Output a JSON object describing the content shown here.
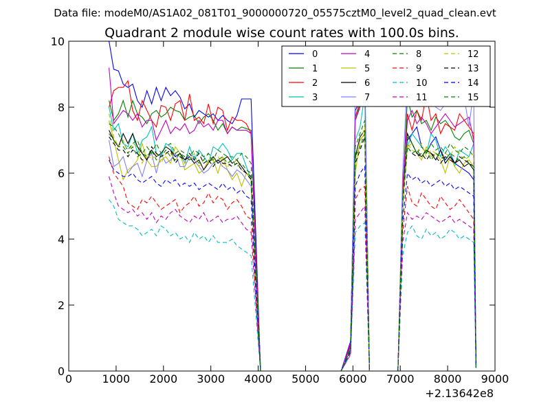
{
  "figure": {
    "suptitle": "Data file: modeM0/AS1A02_081T01_9000000720_05575cztM0_level2_quad_clean.evt",
    "title": "Quadrant 2 module wise count rates with 100.0s bins.",
    "x_offset_label": "+2.13642e8"
  },
  "chart_data": {
    "type": "line",
    "title": "Quadrant 2 module wise count rates with 100.0s bins.",
    "xlim": [
      0,
      9000
    ],
    "ylim": [
      0,
      10
    ],
    "xticks": [
      0,
      1000,
      2000,
      3000,
      4000,
      5000,
      6000,
      7000,
      8000,
      9000
    ],
    "yticks": [
      0,
      2,
      4,
      6,
      8,
      10
    ],
    "x_offset": "+2.13642e8",
    "legend_position": "top-right",
    "grid": false,
    "segments": [
      {
        "x_start": 850,
        "x_end": 3850,
        "step": 100
      },
      {
        "x_start": 5950,
        "x_end": 6250,
        "step": 100
      },
      {
        "x_start": 7050,
        "x_end": 8550,
        "step": 100
      }
    ],
    "x_gaps_zero": [
      [
        4050,
        5750
      ],
      [
        6350,
        6950
      ]
    ],
    "series": [
      {
        "name": "0",
        "color": "#0000ff",
        "dash": "solid",
        "seg1": [
          10.0,
          9.15,
          9.1,
          8.7,
          8.6,
          8.7,
          8.2,
          8.0,
          8.5,
          8.1,
          8.6,
          8.2,
          8.6,
          8.35,
          8.5,
          8.3,
          7.95,
          8.1,
          7.7,
          7.9,
          7.8,
          7.7,
          7.8,
          7.6,
          7.75,
          7.6,
          7.5,
          7.75,
          8.25,
          8.25,
          8.25
        ],
        "seg2": [
          0.9,
          7.9,
          8.2,
          8.6
        ],
        "seg3": [
          5.5,
          7.0,
          7.2,
          7.4,
          6.8,
          6.6,
          6.9,
          7.1,
          6.7,
          6.4,
          6.6,
          6.3,
          6.2,
          6.1,
          6.0,
          5.8
        ]
      },
      {
        "name": "1",
        "color": "#008000",
        "dash": "solid",
        "seg1": [
          8.2,
          7.6,
          7.8,
          8.2,
          7.7,
          8.2,
          7.8,
          7.7,
          7.5,
          7.8,
          7.9,
          7.7,
          7.8,
          8.0,
          7.9,
          7.85,
          7.6,
          7.7,
          7.75,
          7.5,
          7.7,
          7.8,
          7.6,
          7.3,
          7.5,
          7.2,
          7.4,
          7.3,
          7.4,
          7.35,
          7.3
        ],
        "seg2": [
          0.75,
          7.6,
          8.1,
          8.5
        ],
        "seg3": [
          5.3,
          8.3,
          7.7,
          7.9,
          7.5,
          7.6,
          7.3,
          7.7,
          7.5,
          7.6,
          7.4,
          7.1,
          7.0,
          7.2,
          7.3,
          6.9
        ]
      },
      {
        "name": "2",
        "color": "#ff0000",
        "dash": "solid",
        "seg1": [
          8.0,
          8.5,
          8.6,
          8.6,
          8.8,
          7.9,
          7.6,
          8.2,
          7.9,
          7.6,
          7.4,
          8.05,
          8.0,
          7.6,
          8.1,
          8.2,
          7.6,
          8.4,
          7.6,
          7.7,
          7.5,
          8.1,
          7.5,
          8.0,
          7.9,
          7.3,
          7.7,
          7.6,
          7.6,
          7.5,
          7.2
        ],
        "seg2": [
          0.8,
          7.7,
          8.2,
          8.6
        ],
        "seg3": [
          5.4,
          7.8,
          7.3,
          7.9,
          7.6,
          8.4,
          7.6,
          7.8,
          7.2,
          7.5,
          7.4,
          7.3,
          7.8,
          7.6,
          7.4,
          7.2
        ]
      },
      {
        "name": "3",
        "color": "#00bfbf",
        "dash": "solid",
        "seg1": [
          8.0,
          7.3,
          7.5,
          6.9,
          6.8,
          7.2,
          6.6,
          7.0,
          7.1,
          7.4,
          6.6,
          6.5,
          6.9,
          6.8,
          6.5,
          6.6,
          6.3,
          6.8,
          6.4,
          6.7,
          6.5,
          6.3,
          6.8,
          6.7,
          6.9,
          6.7,
          6.4,
          6.6,
          6.6,
          6.2,
          5.8
        ],
        "seg2": [
          0.7,
          7.0,
          7.4,
          8.4
        ],
        "seg3": [
          5.1,
          6.8,
          7.2,
          7.0,
          6.8,
          6.6,
          7.2,
          7.0,
          6.5,
          6.8,
          6.6,
          6.2,
          6.7,
          6.6,
          6.5,
          6.9
        ]
      },
      {
        "name": "4",
        "color": "#bf00bf",
        "dash": "solid",
        "seg1": [
          9.2,
          7.5,
          7.7,
          7.9,
          7.8,
          7.6,
          7.8,
          7.4,
          7.6,
          7.6,
          7.0,
          7.3,
          7.6,
          7.2,
          7.4,
          7.3,
          7.5,
          7.2,
          7.3,
          7.6,
          7.4,
          7.5,
          7.3,
          7.6,
          7.6,
          7.2,
          7.4,
          7.3,
          7.3,
          7.3,
          7.2
        ],
        "seg2": [
          0.85,
          7.6,
          8.0,
          8.9
        ],
        "seg3": [
          5.6,
          7.6,
          7.9,
          7.5,
          7.7,
          7.5,
          7.2,
          7.4,
          7.6,
          7.8,
          7.6,
          7.4,
          7.5,
          7.6,
          7.7,
          7.0
        ]
      },
      {
        "name": "5",
        "color": "#bfbf00",
        "dash": "solid",
        "seg1": [
          7.6,
          7.0,
          6.4,
          5.8,
          6.1,
          6.2,
          6.4,
          6.9,
          6.4,
          6.2,
          6.2,
          6.4,
          6.5,
          6.3,
          6.8,
          6.6,
          6.1,
          6.2,
          6.3,
          6.0,
          6.1,
          6.4,
          6.4,
          6.0,
          6.5,
          6.1,
          5.8,
          6.0,
          5.6,
          6.0,
          5.8
        ],
        "seg2": [
          0.65,
          6.0,
          7.0,
          7.2
        ],
        "seg3": [
          5.0,
          6.8,
          6.9,
          6.6,
          6.4,
          6.8,
          6.5,
          6.6,
          6.4,
          6.0,
          6.5,
          6.2,
          6.0,
          6.3,
          6.4,
          6.2
        ]
      },
      {
        "name": "6",
        "color": "#000000",
        "dash": "solid",
        "seg1": [
          7.3,
          7.0,
          6.8,
          7.2,
          6.9,
          7.2,
          6.8,
          6.6,
          6.4,
          6.7,
          6.5,
          6.6,
          6.8,
          6.7,
          6.5,
          6.6,
          6.4,
          6.5,
          6.3,
          6.4,
          6.1,
          6.3,
          6.5,
          6.3,
          6.4,
          6.5,
          6.3,
          6.4,
          6.2,
          6.0,
          5.9
        ],
        "seg2": [
          0.7,
          6.5,
          7.1,
          7.3
        ],
        "seg3": [
          5.0,
          7.2,
          6.9,
          6.6,
          6.5,
          6.7,
          6.6,
          6.4,
          6.7,
          6.3,
          6.5,
          6.3,
          6.4,
          6.2,
          6.3,
          6.1
        ]
      },
      {
        "name": "7",
        "color": "#7f7fff",
        "dash": "solid",
        "seg1": [
          7.0,
          6.2,
          6.3,
          6.5,
          6.0,
          6.2,
          6.3,
          5.9,
          6.4,
          6.6,
          6.0,
          6.6,
          6.3,
          6.4,
          6.6,
          6.2,
          6.2,
          6.5,
          6.4,
          6.2,
          6.0,
          6.1,
          6.3,
          6.4,
          6.2,
          6.1,
          5.9,
          6.1,
          6.0,
          5.8,
          5.6
        ],
        "seg2": [
          0.7,
          8.5,
          9.3,
          9.4
        ],
        "seg3": [
          6.0,
          8.9,
          8.7,
          8.1,
          8.3,
          8.2,
          8.4,
          8.0,
          7.9,
          8.1,
          8.3,
          8.5,
          8.4,
          8.3,
          7.4,
          8.5
        ]
      },
      {
        "name": "8",
        "color": "#008000",
        "dash": "dashed",
        "seg1": [
          7.5,
          7.4,
          7.2,
          6.9,
          6.7,
          6.9,
          7.0,
          6.6,
          6.8,
          6.6,
          6.9,
          6.6,
          6.8,
          6.9,
          6.6,
          6.7,
          6.6,
          6.5,
          6.7,
          6.6,
          6.5,
          6.6,
          6.4,
          6.7,
          6.6,
          6.5,
          6.5,
          6.4,
          6.6,
          6.5,
          6.3
        ],
        "seg2": [
          0.7,
          6.8,
          7.2,
          7.6
        ],
        "seg3": [
          5.2,
          7.1,
          6.9,
          6.6,
          6.8,
          6.6,
          6.9,
          6.7,
          6.8,
          6.6,
          6.9,
          6.7,
          6.6,
          6.8,
          6.7,
          6.5
        ]
      },
      {
        "name": "9",
        "color": "#ff0000",
        "dash": "dashed",
        "seg1": [
          6.5,
          6.0,
          5.8,
          5.6,
          5.1,
          5.0,
          4.9,
          5.2,
          5.1,
          5.3,
          5.1,
          4.9,
          5.0,
          5.1,
          5.2,
          4.8,
          5.0,
          5.1,
          5.3,
          5.0,
          5.1,
          5.4,
          5.1,
          5.3,
          5.2,
          4.9,
          5.1,
          5.2,
          5.0,
          4.7,
          4.6
        ],
        "seg2": [
          0.55,
          5.2,
          5.5,
          5.6
        ],
        "seg3": [
          4.2,
          5.6,
          5.1,
          5.0,
          5.4,
          5.2,
          5.0,
          4.9,
          5.3,
          5.1,
          4.9,
          5.0,
          5.2,
          5.0,
          4.8,
          4.6
        ]
      },
      {
        "name": "10",
        "color": "#00bfbf",
        "dash": "dashed",
        "seg1": [
          5.2,
          5.0,
          4.6,
          4.5,
          4.4,
          4.4,
          4.3,
          4.1,
          4.2,
          4.3,
          4.1,
          4.4,
          4.3,
          4.1,
          4.2,
          4.0,
          4.1,
          3.9,
          4.2,
          4.0,
          4.1,
          3.9,
          4.1,
          3.9,
          3.9,
          3.9,
          4.0,
          3.8,
          3.7,
          3.6,
          3.5
        ],
        "seg2": [
          0.5,
          4.2,
          4.4,
          4.5
        ],
        "seg3": [
          3.5,
          4.2,
          4.4,
          4.1,
          4.0,
          4.3,
          4.1,
          4.2,
          4.0,
          4.1,
          4.3,
          4.2,
          4.0,
          4.1,
          4.0,
          3.9
        ]
      },
      {
        "name": "11",
        "color": "#bf00bf",
        "dash": "dashed",
        "seg1": [
          5.9,
          5.4,
          5.0,
          4.9,
          4.8,
          4.9,
          4.7,
          4.8,
          4.6,
          4.8,
          4.5,
          4.7,
          4.6,
          4.8,
          4.9,
          4.7,
          4.6,
          4.5,
          4.7,
          4.6,
          4.8,
          4.5,
          4.6,
          4.7,
          4.5,
          4.6,
          4.6,
          4.7,
          4.5,
          4.3,
          4.2
        ],
        "seg2": [
          0.5,
          4.6,
          4.8,
          5.0
        ],
        "seg3": [
          3.9,
          4.8,
          4.6,
          4.7,
          4.6,
          4.8,
          4.7,
          4.6,
          4.5,
          4.6,
          4.7,
          4.5,
          4.6,
          4.5,
          4.4,
          4.3
        ]
      },
      {
        "name": "12",
        "color": "#bfbf00",
        "dash": "dashed",
        "seg1": [
          7.8,
          7.1,
          6.8,
          7.0,
          6.6,
          6.9,
          6.8,
          6.3,
          6.6,
          6.4,
          6.6,
          6.3,
          6.6,
          6.6,
          6.4,
          6.5,
          6.3,
          6.4,
          6.6,
          6.2,
          6.4,
          6.3,
          6.4,
          6.5,
          6.3,
          6.2,
          6.3,
          6.4,
          6.1,
          6.0,
          5.9
        ],
        "seg2": [
          0.65,
          6.4,
          6.9,
          7.4
        ],
        "seg3": [
          5.1,
          6.9,
          6.7,
          6.6,
          6.9,
          6.5,
          6.7,
          6.6,
          6.4,
          6.6,
          6.5,
          6.8,
          6.6,
          6.4,
          6.5,
          6.6
        ]
      },
      {
        "name": "13",
        "color": "#000000",
        "dash": "dashed",
        "seg1": [
          7.1,
          6.9,
          6.7,
          6.7,
          6.5,
          6.7,
          6.6,
          6.4,
          6.4,
          6.8,
          6.6,
          6.5,
          6.6,
          6.7,
          6.3,
          6.5,
          6.4,
          6.6,
          6.4,
          6.6,
          6.3,
          6.4,
          6.2,
          6.4,
          6.3,
          6.3,
          6.2,
          6.3,
          6.1,
          6.0,
          5.8
        ],
        "seg2": [
          0.65,
          6.3,
          6.7,
          7.1
        ],
        "seg3": [
          5.0,
          6.8,
          6.6,
          6.5,
          6.6,
          6.4,
          6.6,
          6.5,
          6.3,
          6.5,
          6.4,
          6.3,
          6.5,
          6.4,
          6.3,
          6.2
        ]
      },
      {
        "name": "14",
        "color": "#0000ff",
        "dash": "dashed",
        "seg1": [
          6.4,
          6.1,
          6.0,
          5.9,
          5.9,
          6.0,
          5.8,
          5.7,
          5.8,
          5.9,
          5.7,
          5.6,
          5.8,
          5.7,
          5.8,
          5.6,
          5.7,
          5.6,
          5.7,
          5.5,
          5.6,
          5.7,
          5.6,
          5.5,
          5.7,
          5.5,
          5.6,
          5.4,
          5.5,
          5.3,
          5.2
        ],
        "seg2": [
          0.6,
          5.6,
          6.0,
          6.2
        ],
        "seg3": [
          4.5,
          6.0,
          5.8,
          5.9,
          5.7,
          5.8,
          5.6,
          5.7,
          5.8,
          5.6,
          5.7,
          5.5,
          5.6,
          5.5,
          5.4,
          5.3
        ]
      },
      {
        "name": "15",
        "color": "#008000",
        "dash": "dashed",
        "seg1": [
          7.2,
          7.0,
          6.8,
          6.8,
          6.6,
          6.8,
          6.5,
          6.6,
          6.5,
          6.7,
          6.4,
          6.5,
          6.7,
          6.5,
          6.4,
          6.6,
          6.5,
          6.4,
          6.5,
          6.3,
          6.4,
          6.6,
          6.3,
          6.4,
          6.5,
          6.3,
          6.4,
          6.2,
          6.3,
          6.1,
          6.0
        ],
        "seg2": [
          0.65,
          6.5,
          6.8,
          7.2
        ],
        "seg3": [
          5.0,
          6.8,
          6.6,
          6.7,
          6.5,
          6.7,
          6.4,
          6.6,
          6.5,
          6.4,
          6.6,
          6.5,
          6.4,
          6.5,
          6.3,
          6.2
        ]
      }
    ]
  }
}
